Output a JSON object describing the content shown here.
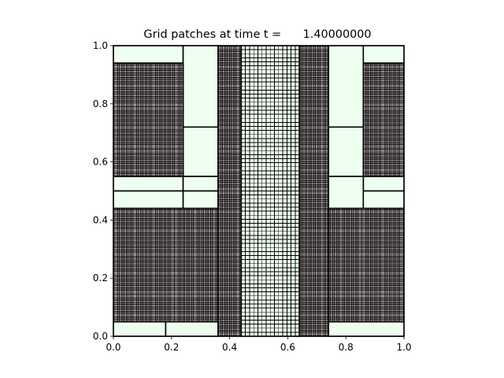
{
  "chart_data": {
    "type": "grid-patches",
    "title": "Grid patches at time t =      1.40000000",
    "xlim": [
      0.0,
      1.0
    ],
    "ylim": [
      0.0,
      1.0
    ],
    "xticks": [
      "0.0",
      "0.2",
      "0.4",
      "0.6",
      "0.8",
      "1.0"
    ],
    "yticks": [
      "0.0",
      "0.2",
      "0.4",
      "0.6",
      "0.8",
      "1.0"
    ],
    "colors": {
      "coarse_patch": "#eefff0",
      "fine_patch": "#ffeef0",
      "grid_line": "#000000"
    },
    "patches": [
      {
        "level": 1,
        "x0": 0.0,
        "x1": 0.24,
        "y0": 0.94,
        "y1": 1.0,
        "nx": 0,
        "ny": 0
      },
      {
        "level": 1,
        "x0": 0.24,
        "x1": 0.36,
        "y0": 0.72,
        "y1": 1.0,
        "nx": 0,
        "ny": 0
      },
      {
        "level": 1,
        "x0": 0.24,
        "x1": 0.36,
        "y0": 0.55,
        "y1": 0.72,
        "nx": 0,
        "ny": 0
      },
      {
        "level": 1,
        "x0": 0.0,
        "x1": 0.24,
        "y0": 0.5,
        "y1": 0.55,
        "nx": 0,
        "ny": 0
      },
      {
        "level": 1,
        "x0": 0.24,
        "x1": 0.36,
        "y0": 0.5,
        "y1": 0.55,
        "nx": 0,
        "ny": 0
      },
      {
        "level": 1,
        "x0": 0.0,
        "x1": 0.24,
        "y0": 0.44,
        "y1": 0.5,
        "nx": 0,
        "ny": 0
      },
      {
        "level": 1,
        "x0": 0.24,
        "x1": 0.36,
        "y0": 0.44,
        "y1": 0.5,
        "nx": 0,
        "ny": 0
      },
      {
        "level": 1,
        "x0": 0.0,
        "x1": 0.18,
        "y0": 0.0,
        "y1": 0.05,
        "nx": 0,
        "ny": 0
      },
      {
        "level": 1,
        "x0": 0.18,
        "x1": 0.36,
        "y0": 0.0,
        "y1": 0.05,
        "nx": 0,
        "ny": 0
      },
      {
        "level": 1,
        "x0": 0.74,
        "x1": 0.86,
        "y0": 0.72,
        "y1": 1.0,
        "nx": 0,
        "ny": 0
      },
      {
        "level": 1,
        "x0": 0.86,
        "x1": 1.0,
        "y0": 0.94,
        "y1": 1.0,
        "nx": 0,
        "ny": 0
      },
      {
        "level": 1,
        "x0": 0.74,
        "x1": 0.86,
        "y0": 0.55,
        "y1": 0.72,
        "nx": 0,
        "ny": 0
      },
      {
        "level": 1,
        "x0": 0.86,
        "x1": 1.0,
        "y0": 0.5,
        "y1": 0.55,
        "nx": 0,
        "ny": 0
      },
      {
        "level": 1,
        "x0": 0.74,
        "x1": 0.86,
        "y0": 0.44,
        "y1": 0.55,
        "nx": 0,
        "ny": 0
      },
      {
        "level": 1,
        "x0": 0.86,
        "x1": 1.0,
        "y0": 0.44,
        "y1": 0.5,
        "nx": 0,
        "ny": 0
      },
      {
        "level": 1,
        "x0": 0.74,
        "x1": 1.0,
        "y0": 0.0,
        "y1": 0.05,
        "nx": 0,
        "ny": 0
      },
      {
        "level": 2,
        "x0": 0.0,
        "x1": 0.24,
        "y0": 0.55,
        "y1": 0.94,
        "nx": 48,
        "ny": 78
      },
      {
        "level": 2,
        "x0": 0.0,
        "x1": 0.36,
        "y0": 0.05,
        "y1": 0.44,
        "nx": 72,
        "ny": 78
      },
      {
        "level": 2,
        "x0": 0.36,
        "x1": 0.44,
        "y0": 0.0,
        "y1": 1.0,
        "nx": 16,
        "ny": 200
      },
      {
        "level": 1,
        "x0": 0.44,
        "x1": 0.64,
        "y0": 0.0,
        "y1": 1.0,
        "nx": 14,
        "ny": 72
      },
      {
        "level": 2,
        "x0": 0.64,
        "x1": 0.74,
        "y0": 0.0,
        "y1": 1.0,
        "nx": 20,
        "ny": 200
      },
      {
        "level": 2,
        "x0": 0.86,
        "x1": 1.0,
        "y0": 0.55,
        "y1": 0.94,
        "nx": 28,
        "ny": 78
      },
      {
        "level": 2,
        "x0": 0.74,
        "x1": 1.0,
        "y0": 0.05,
        "y1": 0.44,
        "nx": 52,
        "ny": 78
      }
    ]
  }
}
